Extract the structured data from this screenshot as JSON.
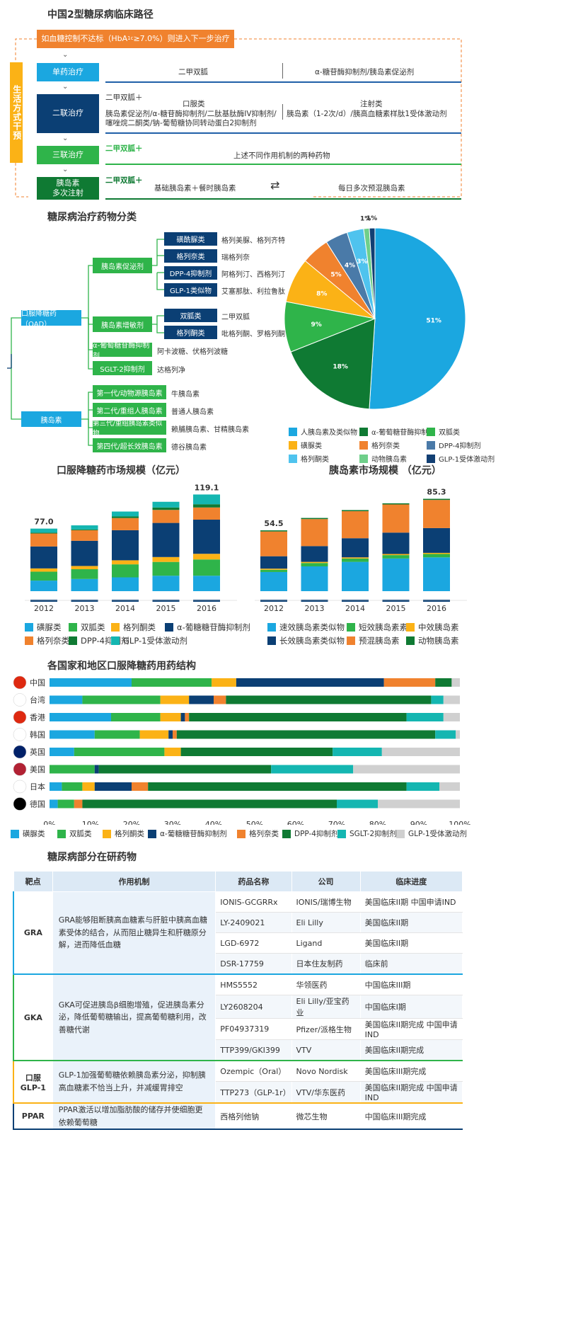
{
  "colors": {
    "lightblue": "#1ba7e0",
    "darkblue": "#0b3f74",
    "green": "#2fb44a",
    "darkgreen": "#0f7a33",
    "orange": "#f0822e",
    "yellow": "#fbb216",
    "teal": "#14b6b1",
    "gray": "#d0d0d0",
    "navy": "#123f73"
  },
  "pathway": {
    "title": "中国2型糖尿病临床路径",
    "top": "如血糖控制不达标（HbA",
    "top_sub": "1c",
    "top_end": "≥7.0%）则进入下一步治疗",
    "side": "生活方式干预",
    "steps": [
      {
        "label": "单药治疗"
      },
      {
        "label": "二联治疗"
      },
      {
        "label": "三联治疗"
      },
      {
        "label": "胰岛素",
        "label2": "多次注射"
      }
    ],
    "mono_left": "二甲双胍",
    "mono_right": "α-糖苷酶抑制剂/胰岛素促泌剂",
    "dual_prefix": "二甲双胍＋",
    "dual_oral_h": "口服类",
    "dual_oral_1": "胰岛素促泌剂/α-糖苷酶抑制剂/二肽基肽酶IV抑制剂/",
    "dual_oral_2": "噻唑烷二酮类/钠-葡萄糖协同转动蛋白2抑制剂",
    "dual_inj_h": "注射类",
    "dual_inj_1": "胰岛素（1-2次/d）/胰高血糖素样肽1受体激动剂",
    "triple_prefix": "二甲双胍＋",
    "triple_text": "上述不同作用机制的两种药物",
    "insulin_prefix": "二甲双胍＋",
    "insulin_left": "基础胰岛素＋餐时胰岛素",
    "insulin_right": "每日多次预混胰岛素"
  },
  "classification": {
    "title": "糖尿病治疗药物分类",
    "oad": "口服降糖药（OAD）",
    "insulin": "胰岛素",
    "groups": [
      {
        "name": "胰岛素促泌剂"
      },
      {
        "name": "胰岛素增敏剂"
      },
      {
        "name": "α-葡萄糖苷酶抑制剂",
        "drugs": "阿卡波糖、伏格列波糖"
      },
      {
        "name": "SGLT-2抑制剂",
        "drugs": "达格列净"
      }
    ],
    "subs": [
      {
        "name": "磺酰脲类",
        "drugs": "格列美脲、格列齐特"
      },
      {
        "name": "格列奈类",
        "drugs": "瑞格列奈"
      },
      {
        "name": "DPP-4抑制剂",
        "drugs": "阿格列汀、西格列汀"
      },
      {
        "name": "GLP-1类似物",
        "drugs": "艾塞那肽、利拉鲁肽"
      },
      {
        "name": "双胍类",
        "drugs": "二甲双胍"
      },
      {
        "name": "格列酮类",
        "drugs": "吡格列酮、罗格列酮"
      }
    ],
    "insulins": [
      {
        "name": "第一代/动物源胰岛素",
        "drugs": "牛胰岛素"
      },
      {
        "name": "第二代/重组人胰岛素",
        "drugs": "普通人胰岛素"
      },
      {
        "name": "第三代/重组胰岛素类似物",
        "drugs": "赖脯胰岛素、甘精胰岛素"
      },
      {
        "name": "第四代/超长效胰岛素",
        "drugs": "德谷胰岛素"
      }
    ]
  },
  "chart_data": [
    {
      "type": "pie",
      "labels": [
        "人胰岛素及类似物",
        "α-葡萄糖苷酶抑制剂",
        "双胍类",
        "磺脲类",
        "格列奈类",
        "DPP-4抑制剂",
        "格列酮类",
        "动物胰岛素",
        "GLP-1受体激动剂"
      ],
      "values": [
        51,
        18,
        9,
        8,
        5,
        4,
        3,
        1,
        1
      ],
      "label_text": [
        "51%",
        "18%",
        "9%",
        "8%",
        "5%",
        "4%",
        "3%",
        "1%",
        "1%"
      ],
      "colors": [
        "#1ba7e0",
        "#0f7a33",
        "#2fb44a",
        "#fbb216",
        "#f0822e",
        "#4a7aa8",
        "#4fc3ee",
        "#6fcf8a",
        "#123f73"
      ]
    },
    {
      "type": "bar",
      "title": "口服降糖药市场规模（亿元）",
      "categories": [
        "2012",
        "2013",
        "2014",
        "2015",
        "2016"
      ],
      "totals": [
        77.0,
        null,
        null,
        null,
        119.1
      ],
      "total_labels": [
        "77.0",
        "",
        "",
        "",
        "119.1"
      ],
      "series": [
        {
          "name": "磺脲类",
          "color": "#1ba7e0",
          "values": [
            13,
            15,
            17,
            19,
            19
          ]
        },
        {
          "name": "双胍类",
          "color": "#2fb44a",
          "values": [
            11,
            12,
            16,
            17,
            20
          ]
        },
        {
          "name": "格列酮类",
          "color": "#fbb216",
          "values": [
            4,
            4,
            5,
            6,
            7
          ]
        },
        {
          "name": "α-葡糖糖苷酶抑制剂",
          "color": "#0b3f74",
          "values": [
            27,
            31,
            37,
            42,
            42
          ]
        },
        {
          "name": "格列奈类",
          "color": "#f0822e",
          "values": [
            16,
            13,
            15,
            16,
            15
          ]
        },
        {
          "name": "DPP-4抑制剂",
          "color": "#0f7a33",
          "values": [
            1,
            1,
            2,
            3,
            4
          ]
        },
        {
          "name": "GLP-1受体激动剂",
          "color": "#14b6b1",
          "values": [
            5,
            5,
            6,
            7,
            12
          ]
        }
      ]
    },
    {
      "type": "bar",
      "title": "胰岛素市场规模 （亿元）",
      "categories": [
        "2012",
        "2013",
        "2014",
        "2015",
        "2016"
      ],
      "total_labels": [
        "54.5",
        "",
        "",
        "",
        "85.3"
      ],
      "series": [
        {
          "name": "速效胰岛素类似物",
          "color": "#1ba7e0",
          "values": [
            17,
            22,
            26,
            29,
            30
          ]
        },
        {
          "name": "短效胰岛素素",
          "color": "#2fb44a",
          "values": [
            2,
            3,
            3,
            3,
            3
          ]
        },
        {
          "name": "中效胰岛素",
          "color": "#fbb216",
          "values": [
            1,
            1,
            1,
            1,
            1
          ]
        },
        {
          "name": "长效胰岛素类似物",
          "color": "#0b3f74",
          "values": [
            11,
            14,
            17,
            19,
            22
          ]
        },
        {
          "name": "预混胰岛素",
          "color": "#f0822e",
          "values": [
            22,
            24,
            24,
            25,
            25
          ]
        },
        {
          "name": "动物胰岛素",
          "color": "#0f7a33",
          "values": [
            1,
            1,
            1,
            1,
            1
          ]
        }
      ]
    },
    {
      "type": "bar",
      "orientation": "horizontal-stacked-100",
      "title": "各国家和地区口服降糖药用药结构",
      "categories": [
        "中国",
        "台湾",
        "香港",
        "韩国",
        "英国",
        "美国",
        "日本",
        "德国"
      ],
      "xticks": [
        "0%",
        "10%",
        "20%",
        "30%",
        "40%",
        "50%",
        "60%",
        "70%",
        "80%",
        "90%",
        "100%"
      ],
      "series": [
        {
          "name": "磺脲类",
          "color": "#1ba7e0",
          "values": [
            20,
            8,
            15,
            11,
            6,
            0,
            3,
            2
          ]
        },
        {
          "name": "双胍类",
          "color": "#2fb44a",
          "values": [
            19.5,
            19,
            12,
            11,
            22,
            11,
            5,
            4
          ]
        },
        {
          "name": "格列酮类",
          "color": "#fbb216",
          "values": [
            6,
            7,
            5,
            7,
            4,
            0,
            3,
            0
          ]
        },
        {
          "name": "α-葡糖糖苷酶抑制剂",
          "color": "#0b3f74",
          "values": [
            36,
            6,
            1,
            1,
            0,
            1,
            9,
            0
          ]
        },
        {
          "name": "格列奈类",
          "color": "#f0822e",
          "values": [
            12.5,
            3,
            1,
            1,
            0,
            0,
            4,
            2
          ]
        },
        {
          "name": "DPP-4抑制剂",
          "color": "#0f7a33",
          "values": [
            4,
            50,
            53,
            63,
            37,
            42,
            63,
            62
          ]
        },
        {
          "name": "SGLT-2抑制剂",
          "color": "#14b6b1",
          "values": [
            0,
            3,
            9,
            5,
            12,
            20,
            8,
            10
          ]
        },
        {
          "name": "GLP-1受体激动剂",
          "color": "#d0d0d0",
          "values": [
            2,
            4,
            4,
            1,
            19,
            26,
            5,
            20
          ]
        }
      ]
    }
  ],
  "legends": {
    "pie": [
      "人胰岛素及类似物",
      "α-葡萄糖苷酶抑制剂",
      "双胍类",
      "磺脲类",
      "格列奈类",
      "DPP-4抑制剂",
      "格列酮类",
      "动物胰岛素",
      "GLP-1受体激动剂"
    ],
    "oral": [
      "磺脲类",
      "双胍类",
      "格列酮类",
      "α-葡糖糖苷酶抑制剂",
      "格列奈类",
      "DPP-4抑制剂",
      "GLP-1受体激动剂"
    ],
    "ins": [
      "速效胰岛素类似物",
      "短效胰岛素素",
      "中效胰岛素",
      "长效胰岛素类似物",
      "预混胰岛素",
      "动物胰岛素"
    ],
    "country": [
      "磺脲类",
      "双胍类",
      "格列酮类",
      "α-葡糖糖苷酶抑制剂",
      "格列奈类",
      "DPP-4抑制剂",
      "SGLT-2抑制剂",
      "GLP-1受体激动剂"
    ]
  },
  "table": {
    "title": "糖尿病部分在研药物",
    "headers": [
      "靶点",
      "作用机制",
      "药品名称",
      "公司",
      "临床进度"
    ],
    "groups": [
      {
        "target": "GRA",
        "mech": "GRA能够阻断胰高血糖素与肝脏中胰高血糖素受体的结合，从而阻止糖异生和肝糖原分解，进而降低血糖",
        "rows": [
          [
            "IONIS-GCGRRx",
            "IONIS/瑞博生物",
            "美国临床II期 中国申请IND"
          ],
          [
            "LY-2409021",
            "Eli Lilly",
            "美国临床II期"
          ],
          [
            "LGD-6972",
            "Ligand",
            "美国临床II期"
          ],
          [
            "DSR-17759",
            "日本住友制药",
            "临床前"
          ]
        ]
      },
      {
        "target": "GKA",
        "mech": "GKA可促进胰岛β细胞增殖，促进胰岛素分泌，降低葡萄糖输出，提高葡萄糖利用，改善糖代谢",
        "rows": [
          [
            "HMS5552",
            "华领医药",
            "中国临床III期"
          ],
          [
            "LY2608204",
            "Eli Lilly/亚宝药业",
            "中国临床I期"
          ],
          [
            "PF04937319",
            "Pfizer/派格生物",
            "美国临床II期完成 中国申请IND"
          ],
          [
            "TTP399/GKI399",
            "VTV",
            "美国临床II期完成"
          ]
        ]
      },
      {
        "target": "口服",
        "target2": "GLP-1",
        "mech": "GLP-1加强葡萄糖依赖胰岛素分泌，抑制胰高血糖素不恰当上升，并减缓胃排空",
        "rows": [
          [
            "Ozempic（Oral）",
            "Novo Nordisk",
            "美国临床III期完成"
          ],
          [
            "TTP273（GLP-1r）",
            "VTV/华东医药",
            "美国临床II期完成 中国申请IND"
          ]
        ]
      },
      {
        "target": "PPAR",
        "mech": "PPAR激活以增加脂肪酸的储存并使细胞更依赖葡萄糖",
        "rows": [
          [
            "西格列他钠",
            "微芯生物",
            "中国临床III期完成"
          ]
        ]
      }
    ]
  }
}
